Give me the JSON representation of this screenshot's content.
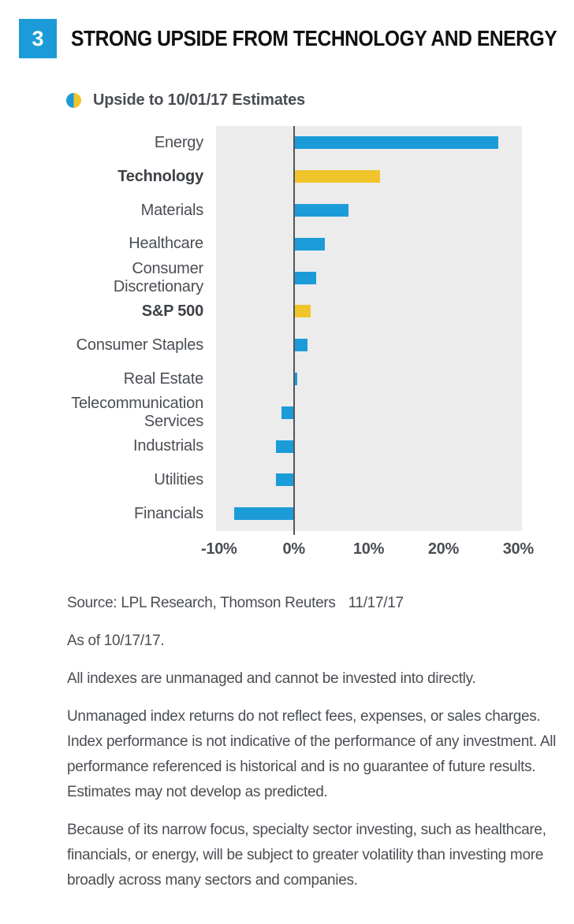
{
  "figure": {
    "number": "3",
    "title": "STRONG UPSIDE FROM TECHNOLOGY AND ENERGY"
  },
  "legend": {
    "label": "Upside to 10/01/17 Estimates"
  },
  "chart_data": {
    "type": "bar",
    "orientation": "horizontal",
    "title": "Upside to 10/01/17 Estimates",
    "xlabel": "",
    "ylabel": "",
    "categories": [
      "Energy",
      "Technology",
      "Materials",
      "Healthcare",
      "Consumer Discretionary",
      "S&P 500",
      "Consumer Staples",
      "Real Estate",
      "Telecommunication Services",
      "Industrials",
      "Utilities",
      "Financials"
    ],
    "values": [
      27.3,
      11.5,
      7.3,
      4.2,
      3.0,
      2.2,
      1.8,
      0.5,
      -1.7,
      -2.4,
      -2.4,
      -8.0
    ],
    "bars": [
      {
        "label": "Energy",
        "value": 27.3,
        "color": "blue",
        "bold": false
      },
      {
        "label": "Technology",
        "value": 11.5,
        "color": "yellow",
        "bold": true
      },
      {
        "label": "Materials",
        "value": 7.3,
        "color": "blue",
        "bold": false
      },
      {
        "label": "Healthcare",
        "value": 4.2,
        "color": "blue",
        "bold": false
      },
      {
        "label": "Consumer Discretionary",
        "value": 3.0,
        "color": "blue",
        "bold": false
      },
      {
        "label": "S&P 500",
        "value": 2.2,
        "color": "yellow",
        "bold": true
      },
      {
        "label": "Consumer Staples",
        "value": 1.8,
        "color": "blue",
        "bold": false
      },
      {
        "label": "Real Estate",
        "value": 0.5,
        "color": "blue",
        "bold": false
      },
      {
        "label": "Telecommunication Services",
        "value": -1.7,
        "color": "blue",
        "bold": false
      },
      {
        "label": "Industrials",
        "value": -2.4,
        "color": "blue",
        "bold": false
      },
      {
        "label": "Utilities",
        "value": -2.4,
        "color": "blue",
        "bold": false
      },
      {
        "label": "Financials",
        "value": -8.0,
        "color": "blue",
        "bold": false
      }
    ],
    "xlim": [
      -10.4,
      30.5
    ],
    "xticks": [
      -10,
      0,
      10,
      20,
      30
    ],
    "xtick_labels": [
      "-10%",
      "0%",
      "10%",
      "20%",
      "30%"
    ],
    "grid": false,
    "legend_position": "top-left",
    "colors": {
      "blue": "#1B9CD8",
      "yellow": "#F0C52C",
      "plot_bg": "#ECECED",
      "zero_line": "#54555A",
      "text": "#4A4E53",
      "title": "#0E1011"
    }
  },
  "footer": {
    "source": "Source: LPL Research, Thomson Reuters",
    "date": "11/17/17",
    "as_of": "As of 10/17/17.",
    "note_indexes": "All indexes are unmanaged and cannot be invested into directly.",
    "note_unmanaged": "Unmanaged index returns do not reflect fees, expenses, or sales charges. Index performance is not indicative of the performance of any investment. All performance referenced is historical and is no guarantee of future results. Estimates may not develop as predicted.",
    "note_sector": "Because of its narrow focus, specialty sector investing, such as healthcare, financials, or energy, will be subject to greater volatility than investing more broadly across many sectors and companies."
  }
}
